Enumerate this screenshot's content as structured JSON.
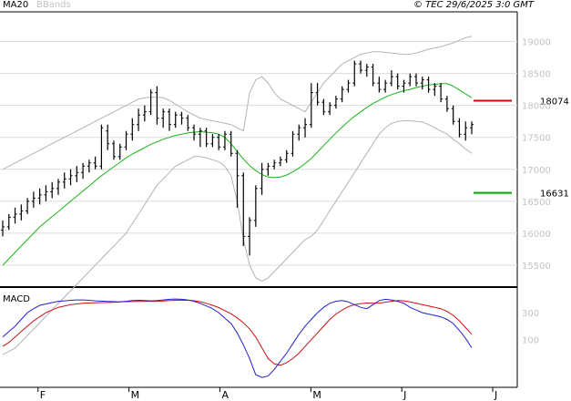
{
  "header": {
    "indicator_ma": "MA20",
    "indicator_bb": "BBands",
    "copyright": "© TEC 29/6/2025 3:0 GMT"
  },
  "macd_panel": {
    "label": "MACD"
  },
  "colors": {
    "ma20": "#18b418",
    "bands": "#b4b4b4",
    "price_bar": "#000000",
    "macd_line": "#2222cc",
    "signal_line": "#cc1111",
    "resistance": "#dd0000",
    "support": "#00aa00",
    "grid": "#dcdcdc",
    "axis_text": "#c3c3c3"
  },
  "chart_data": [
    {
      "type": "ohlc",
      "panel": "price",
      "y_ticks": [
        "19000",
        "18500",
        "18000",
        "17500",
        "17000",
        "16500",
        "16000",
        "15500"
      ],
      "y_tick_values": [
        19000,
        18500,
        18000,
        17500,
        17000,
        16500,
        16000,
        15500
      ],
      "ylim": [
        15200,
        19450
      ],
      "x_ticks": [
        "F",
        "M",
        "A",
        "M",
        "J",
        "J"
      ],
      "levels": [
        {
          "label": "18074",
          "value": 18074,
          "color": "#dd0000"
        },
        {
          "label": "16631",
          "value": 16631,
          "color": "#00aa00"
        }
      ],
      "bars": [
        [
          16050,
          16200,
          15950,
          16100
        ],
        [
          16100,
          16300,
          16050,
          16250
        ],
        [
          16250,
          16400,
          16150,
          16300
        ],
        [
          16300,
          16450,
          16200,
          16350
        ],
        [
          16350,
          16550,
          16300,
          16500
        ],
        [
          16500,
          16650,
          16400,
          16550
        ],
        [
          16550,
          16700,
          16450,
          16600
        ],
        [
          16600,
          16750,
          16500,
          16650
        ],
        [
          16650,
          16800,
          16550,
          16700
        ],
        [
          16700,
          16850,
          16600,
          16800
        ],
        [
          16800,
          16950,
          16700,
          16850
        ],
        [
          16850,
          17000,
          16750,
          16900
        ],
        [
          16900,
          17050,
          16800,
          16950
        ],
        [
          16950,
          17100,
          16850,
          17050
        ],
        [
          17050,
          17150,
          16950,
          17100
        ],
        [
          17100,
          17200,
          17000,
          17050
        ],
        [
          17050,
          17700,
          17000,
          17650
        ],
        [
          17600,
          17700,
          17300,
          17400
        ],
        [
          17400,
          17450,
          17150,
          17200
        ],
        [
          17200,
          17400,
          17150,
          17350
        ],
        [
          17350,
          17600,
          17300,
          17550
        ],
        [
          17550,
          17800,
          17450,
          17700
        ],
        [
          17700,
          17950,
          17600,
          17850
        ],
        [
          17850,
          18000,
          17750,
          17900
        ],
        [
          17900,
          18250,
          17850,
          18200
        ],
        [
          18200,
          18300,
          17700,
          17800
        ],
        [
          17800,
          17950,
          17650,
          17900
        ],
        [
          17900,
          17950,
          17600,
          17700
        ],
        [
          17700,
          17900,
          17650,
          17850
        ],
        [
          17850,
          17900,
          17700,
          17800
        ],
        [
          17800,
          17850,
          17600,
          17650
        ],
        [
          17650,
          17700,
          17450,
          17550
        ],
        [
          17550,
          17650,
          17350,
          17600
        ],
        [
          17600,
          17650,
          17350,
          17400
        ],
        [
          17400,
          17550,
          17350,
          17500
        ],
        [
          17500,
          17550,
          17300,
          17350
        ],
        [
          17350,
          17600,
          17300,
          17550
        ],
        [
          17550,
          17600,
          17200,
          17250
        ],
        [
          17250,
          17300,
          16400,
          16900
        ],
        [
          16900,
          16950,
          15800,
          15950
        ],
        [
          15950,
          16250,
          15650,
          16200
        ],
        [
          16200,
          16750,
          16100,
          16700
        ],
        [
          16700,
          17100,
          16600,
          17000
        ],
        [
          17000,
          17100,
          16900,
          17050
        ],
        [
          17050,
          17150,
          17000,
          17100
        ],
        [
          17100,
          17200,
          17050,
          17150
        ],
        [
          17150,
          17300,
          17100,
          17250
        ],
        [
          17250,
          17600,
          17200,
          17550
        ],
        [
          17550,
          17700,
          17450,
          17650
        ],
        [
          17650,
          17800,
          17500,
          17700
        ],
        [
          17700,
          18350,
          17650,
          18200
        ],
        [
          18200,
          18350,
          18000,
          18050
        ],
        [
          18050,
          18100,
          17850,
          17900
        ],
        [
          17900,
          18050,
          17850,
          18000
        ],
        [
          18000,
          18150,
          17950,
          18100
        ],
        [
          18100,
          18300,
          18050,
          18250
        ],
        [
          18250,
          18400,
          18200,
          18350
        ],
        [
          18350,
          18700,
          18300,
          18650
        ],
        [
          18650,
          18700,
          18500,
          18550
        ],
        [
          18550,
          18650,
          18450,
          18600
        ],
        [
          18600,
          18650,
          18300,
          18350
        ],
        [
          18350,
          18450,
          18200,
          18250
        ],
        [
          18250,
          18400,
          18200,
          18350
        ],
        [
          18350,
          18550,
          18300,
          18450
        ],
        [
          18450,
          18500,
          18250,
          18300
        ],
        [
          18300,
          18400,
          18200,
          18350
        ],
        [
          18350,
          18500,
          18300,
          18450
        ],
        [
          18450,
          18500,
          18300,
          18350
        ],
        [
          18350,
          18450,
          18250,
          18400
        ],
        [
          18400,
          18450,
          18200,
          18250
        ],
        [
          18250,
          18350,
          18150,
          18300
        ],
        [
          18300,
          18350,
          18050,
          18100
        ],
        [
          18100,
          18150,
          17900,
          17950
        ],
        [
          17950,
          18000,
          17700,
          17750
        ],
        [
          17750,
          17800,
          17500,
          17550
        ],
        [
          17550,
          17750,
          17450,
          17650
        ],
        [
          17650,
          17750,
          17550,
          17700
        ]
      ],
      "ma20": [
        15500,
        15600,
        15700,
        15800,
        15900,
        16000,
        16100,
        16180,
        16260,
        16340,
        16420,
        16500,
        16580,
        16660,
        16740,
        16820,
        16900,
        16970,
        17040,
        17110,
        17180,
        17240,
        17290,
        17340,
        17390,
        17430,
        17470,
        17500,
        17530,
        17550,
        17570,
        17580,
        17590,
        17580,
        17570,
        17550,
        17500,
        17400,
        17280,
        17160,
        17060,
        16980,
        16920,
        16880,
        16870,
        16880,
        16910,
        16960,
        17020,
        17090,
        17170,
        17270,
        17370,
        17470,
        17570,
        17660,
        17750,
        17830,
        17900,
        17970,
        18030,
        18080,
        18130,
        18170,
        18200,
        18230,
        18250,
        18280,
        18300,
        18320,
        18330,
        18340,
        18340,
        18300,
        18240,
        18180,
        18120
      ],
      "bb_upper": [
        17000,
        17050,
        17100,
        17150,
        17200,
        17250,
        17300,
        17350,
        17400,
        17450,
        17500,
        17550,
        17600,
        17650,
        17700,
        17750,
        17800,
        17850,
        17900,
        17950,
        18000,
        18050,
        18100,
        18120,
        18130,
        18130,
        18120,
        18080,
        18020,
        17960,
        17900,
        17850,
        17800,
        17780,
        17760,
        17740,
        17720,
        17700,
        17650,
        17600,
        18200,
        18400,
        18450,
        18350,
        18200,
        18100,
        18050,
        18000,
        17950,
        17900,
        18050,
        18200,
        18350,
        18450,
        18550,
        18650,
        18700,
        18750,
        18800,
        18820,
        18840,
        18840,
        18830,
        18820,
        18810,
        18800,
        18800,
        18820,
        18850,
        18880,
        18900,
        18920,
        18950,
        18980,
        19020,
        19060,
        19080
      ],
      "bb_lower": [
        14100,
        14150,
        14200,
        14300,
        14400,
        14500,
        14600,
        14700,
        14800,
        14900,
        15000,
        15100,
        15200,
        15300,
        15400,
        15500,
        15600,
        15700,
        15800,
        15900,
        16000,
        16150,
        16300,
        16450,
        16600,
        16750,
        16850,
        16950,
        17050,
        17100,
        17150,
        17200,
        17200,
        17180,
        17150,
        17120,
        17050,
        16900,
        16500,
        15900,
        15500,
        15300,
        15250,
        15300,
        15400,
        15500,
        15600,
        15700,
        15800,
        15900,
        15950,
        16050,
        16200,
        16350,
        16500,
        16650,
        16800,
        16950,
        17100,
        17250,
        17400,
        17550,
        17650,
        17720,
        17750,
        17760,
        17760,
        17750,
        17740,
        17700,
        17650,
        17600,
        17550,
        17470,
        17400,
        17320,
        17250
      ]
    },
    {
      "type": "line",
      "panel": "macd",
      "y_ticks": [
        "300",
        "100"
      ],
      "y_tick_values": [
        300,
        100
      ],
      "ylim": [
        -240,
        470
      ],
      "series": [
        {
          "name": "MACD",
          "values": [
            120,
            160,
            200,
            250,
            300,
            330,
            355,
            365,
            375,
            385,
            388,
            392,
            395,
            395,
            392,
            388,
            386,
            384,
            382,
            380,
            385,
            390,
            392,
            390,
            388,
            390,
            395,
            400,
            402,
            400,
            395,
            385,
            370,
            350,
            330,
            300,
            260,
            220,
            150,
            60,
            -40,
            -160,
            -180,
            -170,
            -120,
            -60,
            0,
            70,
            140,
            200,
            250,
            300,
            340,
            370,
            385,
            390,
            380,
            360,
            340,
            330,
            360,
            390,
            400,
            395,
            385,
            370,
            340,
            320,
            300,
            290,
            280,
            270,
            250,
            220,
            170,
            110,
            40
          ]
        },
        {
          "name": "Signal",
          "values": [
            50,
            80,
            120,
            160,
            200,
            240,
            270,
            300,
            320,
            340,
            350,
            360,
            365,
            370,
            372,
            374,
            375,
            376,
            378,
            380,
            382,
            383,
            384,
            385,
            385,
            385,
            387,
            390,
            392,
            393,
            392,
            389,
            382,
            370,
            355,
            338,
            316,
            292,
            262,
            225,
            180,
            120,
            40,
            -40,
            -80,
            -90,
            -70,
            -40,
            0,
            50,
            100,
            150,
            200,
            250,
            290,
            320,
            345,
            360,
            368,
            372,
            370,
            372,
            378,
            385,
            390,
            388,
            380,
            370,
            360,
            350,
            340,
            330,
            310,
            280,
            240,
            190,
            140
          ]
        }
      ]
    }
  ]
}
